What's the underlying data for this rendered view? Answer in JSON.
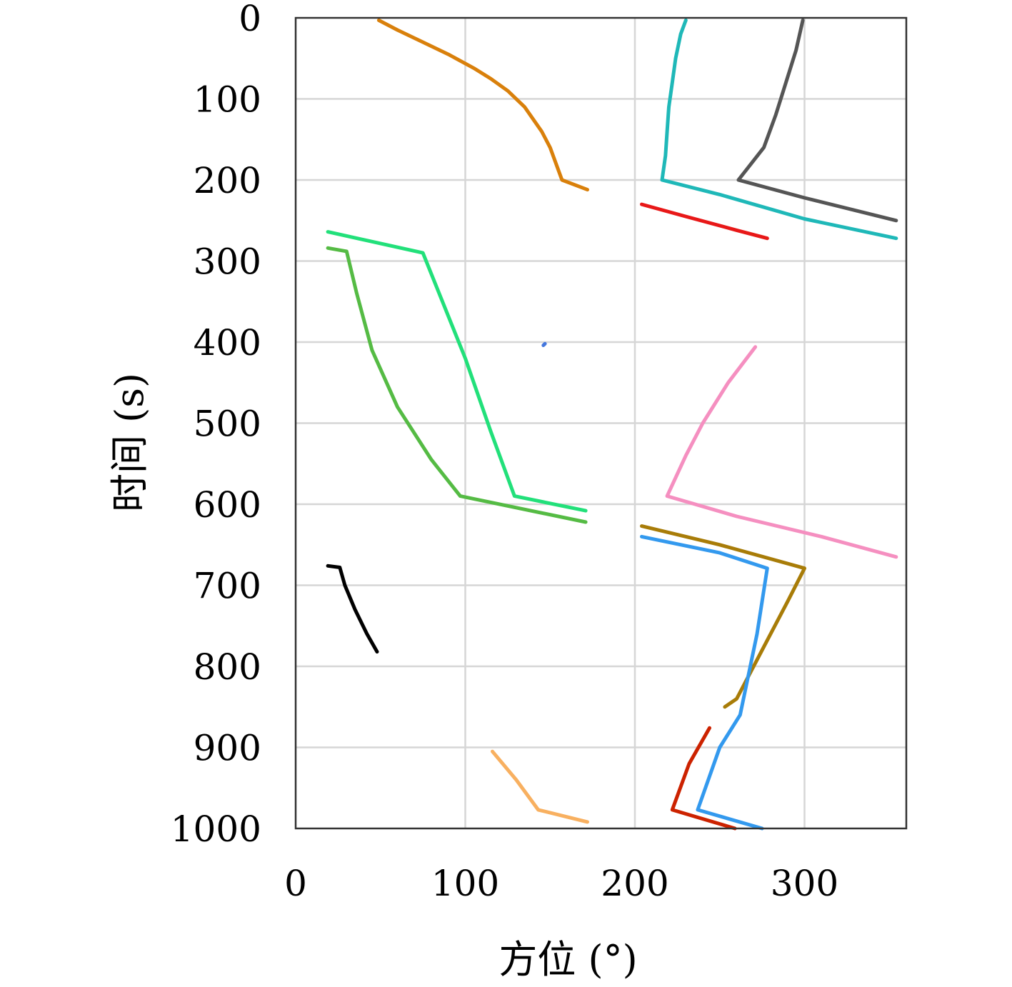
{
  "chart_data": {
    "type": "line",
    "title": "",
    "xlabel": "方位 (°)",
    "ylabel": "时间 (s)",
    "xlim": [
      0,
      360
    ],
    "ylim": [
      0,
      1000
    ],
    "y_inverted": true,
    "grid": true,
    "x_ticks": [
      "0",
      "100",
      "200",
      "300"
    ],
    "y_ticks": [
      "0",
      "100",
      "200",
      "300",
      "400",
      "500",
      "600",
      "700",
      "800",
      "900",
      "1000"
    ],
    "series": [
      {
        "color": "#d9800b",
        "points": [
          [
            49,
            3
          ],
          [
            60,
            15
          ],
          [
            75,
            30
          ],
          [
            90,
            45
          ],
          [
            105,
            62
          ],
          [
            115,
            75
          ],
          [
            125,
            90
          ],
          [
            135,
            110
          ],
          [
            145,
            140
          ],
          [
            150,
            160
          ],
          [
            157,
            200
          ],
          [
            172,
            212
          ]
        ]
      },
      {
        "color": "#1fb8b8",
        "points": [
          [
            230,
            3
          ],
          [
            227,
            20
          ],
          [
            224,
            50
          ],
          [
            222,
            80
          ],
          [
            220,
            110
          ],
          [
            219,
            140
          ],
          [
            218,
            170
          ],
          [
            216,
            200
          ],
          [
            250,
            218
          ],
          [
            300,
            248
          ],
          [
            354,
            272
          ]
        ]
      },
      {
        "color": "#555555",
        "points": [
          [
            299,
            3
          ],
          [
            295,
            40
          ],
          [
            289,
            80
          ],
          [
            283,
            120
          ],
          [
            276,
            160
          ],
          [
            261,
            200
          ],
          [
            300,
            222
          ],
          [
            354,
            250
          ]
        ]
      },
      {
        "color": "#e81818",
        "points": [
          [
            204,
            230
          ],
          [
            230,
            245
          ],
          [
            260,
            262
          ],
          [
            278,
            272
          ]
        ]
      },
      {
        "color": "#22e07a",
        "points": [
          [
            19,
            264
          ],
          [
            75,
            290
          ],
          [
            100,
            420
          ],
          [
            115,
            510
          ],
          [
            129,
            590
          ],
          [
            171,
            608
          ]
        ]
      },
      {
        "color": "#55bb44",
        "points": [
          [
            19,
            284
          ],
          [
            30,
            288
          ],
          [
            36,
            340
          ],
          [
            45,
            410
          ],
          [
            60,
            480
          ],
          [
            80,
            545
          ],
          [
            97,
            590
          ],
          [
            171,
            622
          ]
        ]
      },
      {
        "color": "#4477dd",
        "points": [
          [
            146,
            404
          ],
          [
            147,
            402
          ]
        ]
      },
      {
        "color": "#f58fc0",
        "points": [
          [
            271,
            406
          ],
          [
            255,
            450
          ],
          [
            240,
            500
          ],
          [
            230,
            540
          ],
          [
            219,
            590
          ],
          [
            260,
            615
          ],
          [
            310,
            640
          ],
          [
            354,
            665
          ]
        ]
      },
      {
        "color": "#000000",
        "points": [
          [
            19,
            676
          ],
          [
            26,
            678
          ],
          [
            29,
            700
          ],
          [
            35,
            730
          ],
          [
            42,
            760
          ],
          [
            48,
            782
          ]
        ]
      },
      {
        "color": "#a87c08",
        "points": [
          [
            204,
            627
          ],
          [
            250,
            650
          ],
          [
            300,
            679
          ],
          [
            290,
            720
          ],
          [
            275,
            780
          ],
          [
            260,
            840
          ],
          [
            253,
            850
          ]
        ]
      },
      {
        "color": "#3399ee",
        "points": [
          [
            204,
            640
          ],
          [
            250,
            660
          ],
          [
            278,
            679
          ],
          [
            272,
            760
          ],
          [
            262,
            860
          ],
          [
            250,
            900
          ],
          [
            237,
            977
          ],
          [
            275,
            1000
          ]
        ]
      },
      {
        "color": "#cc2200",
        "points": [
          [
            244,
            876
          ],
          [
            232,
            920
          ],
          [
            222,
            977
          ],
          [
            259,
            1000
          ]
        ]
      },
      {
        "color": "#f8b060",
        "points": [
          [
            116,
            905
          ],
          [
            130,
            940
          ],
          [
            143,
            977
          ],
          [
            172,
            992
          ]
        ]
      }
    ]
  }
}
